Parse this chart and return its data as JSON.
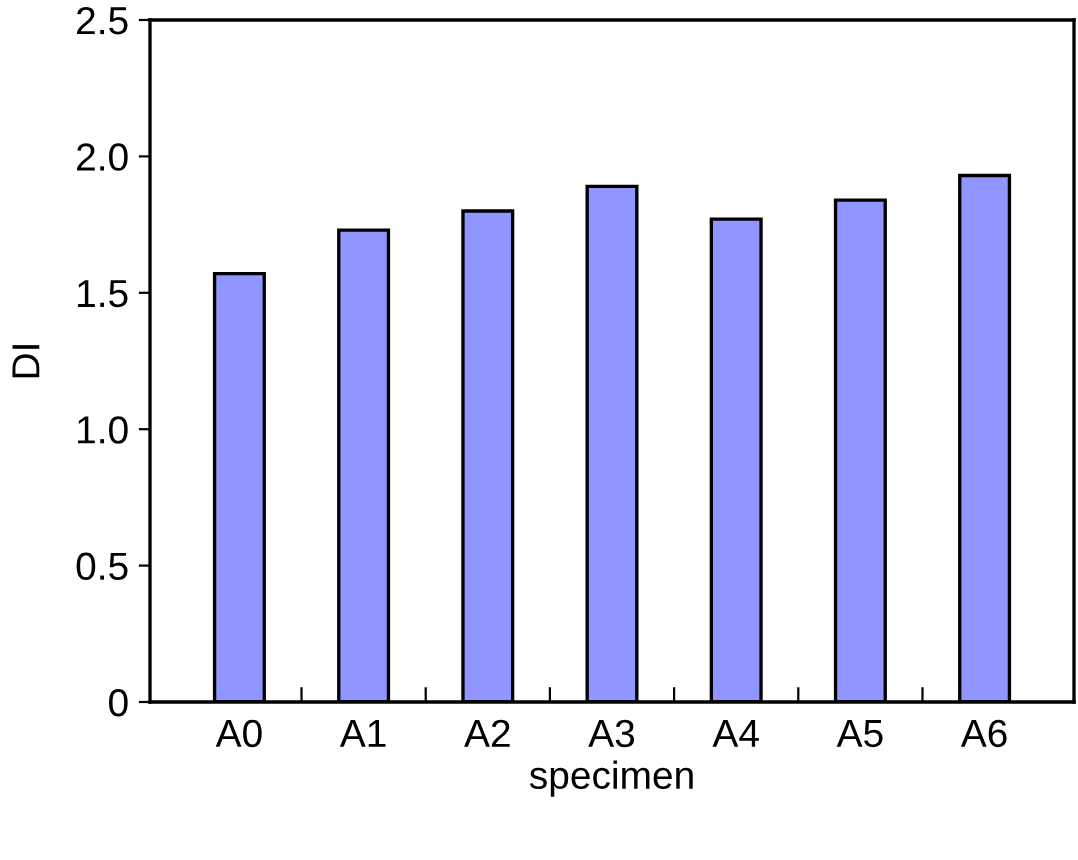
{
  "chart_data": {
    "type": "bar",
    "xlabel": "specimen",
    "ylabel": "DI",
    "categories": [
      "A0",
      "A1",
      "A2",
      "A3",
      "A4",
      "A5",
      "A6"
    ],
    "values": [
      1.57,
      1.73,
      1.8,
      1.89,
      1.77,
      1.84,
      1.93
    ],
    "color": "#9195ff",
    "ylim": [
      0,
      2.5
    ],
    "yticks": [
      {
        "value": 0,
        "label": "0"
      },
      0.5,
      {
        "value": 1,
        "label": "1.0"
      },
      1.5,
      {
        "value": 2,
        "label": "2.0"
      },
      2.5
    ],
    "grid": false
  }
}
